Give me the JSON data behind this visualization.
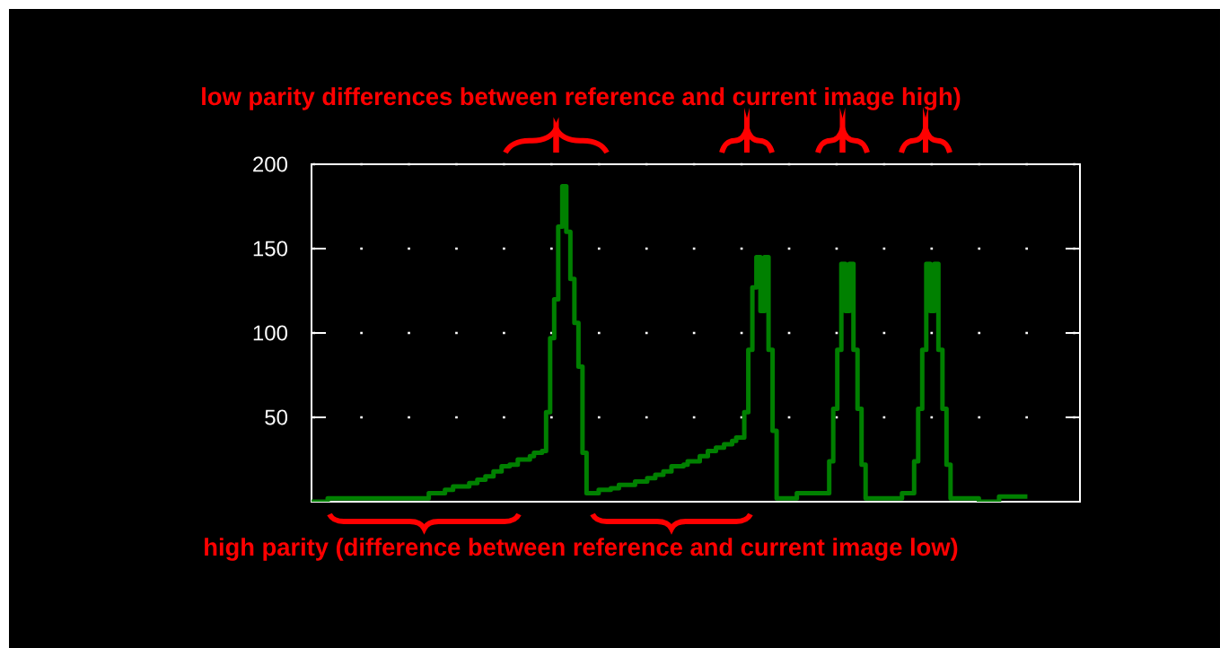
{
  "chart_data": {
    "type": "step",
    "categories": [
      null,
      null,
      null,
      null,
      null,
      null,
      null,
      null,
      null,
      null,
      null,
      null,
      null,
      null,
      null,
      null,
      null,
      null,
      null,
      null,
      null,
      null,
      null,
      null,
      null,
      null,
      null,
      null,
      null,
      null,
      null,
      null,
      null,
      null,
      null,
      null,
      null,
      null,
      null,
      null,
      null,
      null,
      null,
      null,
      null,
      null,
      null,
      null,
      null,
      null,
      null,
      null,
      null,
      null,
      null,
      null,
      null,
      null,
      null,
      null,
      null,
      null,
      null,
      null,
      null,
      null,
      null,
      null,
      null,
      null,
      null,
      null,
      null,
      null,
      null,
      null,
      null,
      null,
      null,
      null,
      null,
      null,
      null,
      null,
      null,
      null,
      null,
      null,
      null,
      null,
      null,
      null,
      null,
      null,
      null,
      null,
      null,
      null,
      null,
      null,
      null,
      null,
      null,
      null,
      null,
      null,
      null,
      null,
      null,
      null,
      null,
      null,
      null,
      null,
      null,
      null,
      null,
      null,
      null,
      null,
      null,
      null,
      null,
      null,
      null,
      null,
      null,
      null,
      null,
      null,
      null,
      null,
      null,
      null,
      null,
      null,
      null,
      null,
      null,
      null,
      null,
      null,
      null,
      null,
      null,
      null,
      null,
      null,
      null,
      null,
      null,
      null,
      null,
      null,
      null,
      null,
      null,
      null,
      null,
      null,
      null,
      null,
      null,
      null,
      null,
      null,
      null,
      null,
      null,
      null,
      null,
      null,
      null,
      null,
      null,
      null,
      null,
      null,
      null,
      null,
      null,
      null,
      null,
      null,
      null,
      null,
      null,
      null,
      null,
      null
    ],
    "values": [
      0,
      0,
      0,
      0,
      2,
      2,
      2,
      2,
      2,
      2,
      2,
      2,
      2,
      2,
      2,
      2,
      2,
      2,
      2,
      2,
      2,
      2,
      2,
      2,
      2,
      2,
      2,
      2,
      2,
      5,
      5,
      5,
      5,
      7,
      7,
      9,
      9,
      9,
      9,
      11,
      11,
      13,
      13,
      15,
      15,
      18,
      18,
      21,
      21,
      22,
      22,
      25,
      25,
      25,
      27,
      29,
      29,
      30,
      53,
      97,
      120,
      163,
      187,
      160,
      132,
      106,
      80,
      29,
      5,
      5,
      5,
      7,
      7,
      7,
      8,
      8,
      10,
      10,
      10,
      10,
      12,
      12,
      12,
      14,
      14,
      16,
      16,
      18,
      18,
      21,
      21,
      21,
      22,
      24,
      24,
      24,
      27,
      27,
      30,
      30,
      32,
      32,
      34,
      34,
      36,
      38,
      38,
      53,
      90,
      127,
      145,
      113,
      145,
      90,
      42,
      2,
      2,
      2,
      2,
      2,
      5,
      5,
      5,
      5,
      5,
      5,
      5,
      5,
      24,
      55,
      90,
      141,
      113,
      141,
      90,
      55,
      22,
      2,
      2,
      2,
      2,
      2,
      2,
      2,
      2,
      2,
      5,
      5,
      5,
      24,
      55,
      90,
      141,
      113,
      141,
      90,
      55,
      22,
      2,
      2,
      2,
      2,
      2,
      2,
      2,
      0,
      0,
      0,
      0,
      0,
      3,
      3,
      3,
      3,
      3,
      3,
      3,
      3,
      null,
      null,
      null,
      null,
      null,
      null,
      null,
      null,
      null,
      null,
      null,
      null
    ],
    "color": "#008000",
    "ylim": [
      0,
      200
    ],
    "yticks": [
      50,
      100,
      150,
      200
    ],
    "grid": "y",
    "tick_labels": "y",
    "annotations": [
      "low parity differences between reference and current image high)",
      "high parity (difference between reference and current image low)"
    ]
  }
}
